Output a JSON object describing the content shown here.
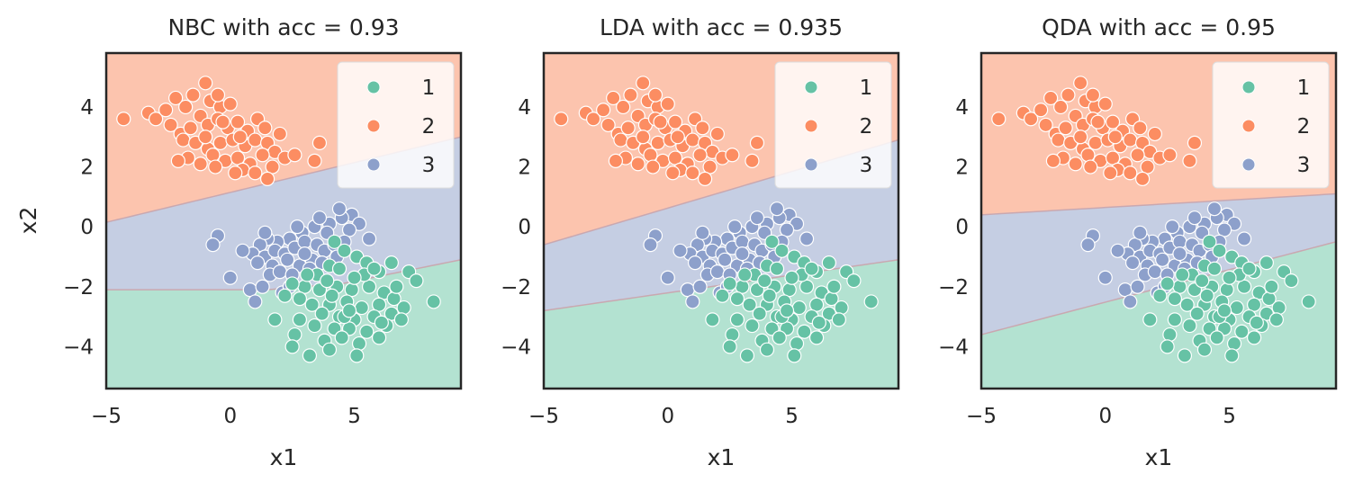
{
  "chart_data": [
    {
      "type": "scatter",
      "title": "NBC with acc = 0.93",
      "xlabel": "x1",
      "ylabel": "x2",
      "xlim": [
        -5,
        9.3
      ],
      "ylim": [
        -5.4,
        5.8
      ],
      "xticks": [
        -5,
        0,
        5
      ],
      "yticks": [
        4,
        2,
        0,
        -2,
        -4
      ],
      "grid": false,
      "legend": {
        "placement": "top-right",
        "entries": [
          "1",
          "2",
          "3"
        ]
      },
      "regions": {
        "class3_upper_boundary": [
          [
            -5,
            0.15
          ],
          [
            9.3,
            3.0
          ]
        ],
        "class1_upper_boundary": [
          [
            -5,
            -2.1
          ],
          [
            1.5,
            -2.1
          ],
          [
            4.5,
            -1.9
          ],
          [
            9.3,
            -1.1
          ]
        ]
      }
    },
    {
      "type": "scatter",
      "title": "LDA with acc = 0.935",
      "xlabel": "x1",
      "ylabel": "",
      "xlim": [
        -5,
        9.3
      ],
      "ylim": [
        -5.4,
        5.8
      ],
      "xticks": [
        -5,
        0,
        5
      ],
      "yticks": [
        4,
        2,
        0,
        -2,
        -4
      ],
      "grid": false,
      "legend": {
        "placement": "top-right",
        "entries": [
          "1",
          "2",
          "3"
        ]
      },
      "regions": {
        "class3_upper_boundary": [
          [
            -5,
            -0.6
          ],
          [
            9.3,
            2.9
          ]
        ],
        "class1_upper_boundary": [
          [
            -5,
            -2.8
          ],
          [
            9.3,
            -1.1
          ]
        ]
      }
    },
    {
      "type": "scatter",
      "title": "QDA with acc = 0.95",
      "xlabel": "x1",
      "ylabel": "",
      "xlim": [
        -5,
        9.3
      ],
      "ylim": [
        -5.4,
        5.8
      ],
      "xticks": [
        -5,
        0,
        5
      ],
      "yticks": [
        4,
        2,
        0,
        -2,
        -4
      ],
      "grid": false,
      "legend": {
        "placement": "top-right",
        "entries": [
          "1",
          "2",
          "3"
        ]
      },
      "regions": {
        "class3_upper_boundary": [
          [
            -5,
            0.4
          ],
          [
            9.3,
            1.1
          ]
        ],
        "class1_upper_boundary": [
          [
            -5,
            -3.6
          ],
          [
            9.3,
            -0.5
          ]
        ]
      }
    }
  ],
  "colors": {
    "class1": "#66c2a5",
    "class2": "#fc8d62",
    "class3": "#8da0cb",
    "region1": "#b3e2d1",
    "region2": "#fcc4ae",
    "region3": "#c5cee3"
  },
  "points": {
    "class1": [
      [
        4.2,
        -0.5
      ],
      [
        4.6,
        -0.8
      ],
      [
        5.1,
        -1.0
      ],
      [
        4.0,
        -1.3
      ],
      [
        3.5,
        -1.6
      ],
      [
        5.5,
        -1.2
      ],
      [
        6.0,
        -1.5
      ],
      [
        6.5,
        -1.2
      ],
      [
        7.2,
        -1.5
      ],
      [
        7.5,
        -1.8
      ],
      [
        3.0,
        -2.0
      ],
      [
        3.6,
        -2.1
      ],
      [
        4.3,
        -2.0
      ],
      [
        4.9,
        -2.1
      ],
      [
        5.6,
        -2.0
      ],
      [
        6.2,
        -2.2
      ],
      [
        2.8,
        -2.4
      ],
      [
        3.3,
        -2.6
      ],
      [
        4.0,
        -2.6
      ],
      [
        4.7,
        -2.5
      ],
      [
        5.3,
        -2.7
      ],
      [
        6.0,
        -2.6
      ],
      [
        6.6,
        -2.4
      ],
      [
        2.2,
        -2.3
      ],
      [
        3.7,
        -2.9
      ],
      [
        4.4,
        -3.0
      ],
      [
        5.0,
        -3.1
      ],
      [
        5.8,
        -3.0
      ],
      [
        6.5,
        -2.9
      ],
      [
        7.0,
        -2.7
      ],
      [
        8.2,
        -2.5
      ],
      [
        1.8,
        -3.1
      ],
      [
        2.8,
        -3.1
      ],
      [
        3.4,
        -3.3
      ],
      [
        4.2,
        -3.4
      ],
      [
        4.8,
        -3.4
      ],
      [
        5.5,
        -3.5
      ],
      [
        6.3,
        -3.3
      ],
      [
        6.9,
        -3.1
      ],
      [
        2.6,
        -3.6
      ],
      [
        3.8,
        -3.8
      ],
      [
        4.5,
        -3.7
      ],
      [
        5.2,
        -3.9
      ],
      [
        6.0,
        -3.7
      ],
      [
        2.5,
        -4.0
      ],
      [
        3.2,
        -4.3
      ],
      [
        4.0,
        -4.1
      ],
      [
        5.1,
        -4.3
      ],
      [
        4.6,
        -3.0
      ],
      [
        5.4,
        -1.6
      ],
      [
        3.9,
        -1.8
      ],
      [
        4.1,
        -2.3
      ],
      [
        5.8,
        -1.4
      ],
      [
        6.7,
        -2.0
      ],
      [
        2.5,
        -1.9
      ],
      [
        3.1,
        -1.6
      ],
      [
        4.4,
        -1.4
      ],
      [
        5.0,
        -1.7
      ],
      [
        6.1,
        -3.2
      ],
      [
        4.8,
        -2.8
      ]
    ],
    "class2": [
      [
        -4.3,
        3.6
      ],
      [
        -3.3,
        3.8
      ],
      [
        -3.0,
        3.6
      ],
      [
        -2.6,
        3.9
      ],
      [
        -2.2,
        4.3
      ],
      [
        -1.8,
        4.0
      ],
      [
        -1.5,
        4.4
      ],
      [
        -1.0,
        4.8
      ],
      [
        -0.8,
        4.2
      ],
      [
        -0.4,
        4.0
      ],
      [
        0.0,
        4.1
      ],
      [
        -2.4,
        3.4
      ],
      [
        -2.0,
        3.1
      ],
      [
        -1.6,
        3.3
      ],
      [
        -1.2,
        3.7
      ],
      [
        -0.9,
        3.4
      ],
      [
        -0.5,
        3.6
      ],
      [
        -0.1,
        3.3
      ],
      [
        0.3,
        3.5
      ],
      [
        0.7,
        3.2
      ],
      [
        1.1,
        3.6
      ],
      [
        1.4,
        3.3
      ],
      [
        -1.9,
        2.9
      ],
      [
        -1.4,
        2.8
      ],
      [
        -0.9,
        2.6
      ],
      [
        -0.4,
        2.8
      ],
      [
        0.1,
        2.9
      ],
      [
        0.6,
        2.7
      ],
      [
        1.0,
        2.9
      ],
      [
        1.5,
        2.8
      ],
      [
        1.8,
        2.5
      ],
      [
        -1.7,
        2.3
      ],
      [
        -1.2,
        2.1
      ],
      [
        -0.7,
        2.4
      ],
      [
        -0.2,
        2.2
      ],
      [
        0.3,
        2.3
      ],
      [
        0.8,
        2.1
      ],
      [
        1.3,
        2.4
      ],
      [
        1.7,
        2.0
      ],
      [
        2.2,
        2.3
      ],
      [
        2.6,
        2.4
      ],
      [
        3.4,
        2.2
      ],
      [
        3.6,
        2.8
      ],
      [
        0.5,
        1.9
      ],
      [
        1.0,
        1.8
      ],
      [
        1.5,
        1.6
      ],
      [
        -0.6,
        2.0
      ],
      [
        0.2,
        1.8
      ],
      [
        -1.0,
        3.0
      ],
      [
        0.4,
        3.0
      ],
      [
        -0.3,
        3.5
      ],
      [
        2.0,
        3.1
      ],
      [
        -2.1,
        2.2
      ],
      [
        -0.5,
        4.4
      ]
    ],
    "class3": [
      [
        4.9,
        0.4
      ],
      [
        5.2,
        0.1
      ],
      [
        4.5,
        0.3
      ],
      [
        4.8,
        -0.1
      ],
      [
        4.0,
        0.1
      ],
      [
        3.4,
        0.0
      ],
      [
        2.9,
        -0.2
      ],
      [
        2.4,
        -0.4
      ],
      [
        1.9,
        -0.5
      ],
      [
        1.5,
        -0.4
      ],
      [
        1.2,
        -0.6
      ],
      [
        -0.5,
        -0.3
      ],
      [
        -0.7,
        -0.6
      ],
      [
        0.9,
        -0.9
      ],
      [
        1.4,
        -1.0
      ],
      [
        1.8,
        -0.8
      ],
      [
        2.2,
        -0.9
      ],
      [
        2.6,
        -0.7
      ],
      [
        3.0,
        -0.5
      ],
      [
        3.5,
        -0.6
      ],
      [
        3.8,
        -0.8
      ],
      [
        4.2,
        -0.6
      ],
      [
        4.6,
        -0.5
      ],
      [
        5.6,
        -0.4
      ],
      [
        1.1,
        -1.2
      ],
      [
        1.7,
        -1.3
      ],
      [
        2.3,
        -1.1
      ],
      [
        2.8,
        -1.3
      ],
      [
        3.3,
        -1.1
      ],
      [
        3.7,
        -1.2
      ],
      [
        4.3,
        -1.0
      ],
      [
        0.0,
        -1.7
      ],
      [
        0.8,
        -2.1
      ],
      [
        1.3,
        -2.0
      ],
      [
        1.6,
        -1.6
      ],
      [
        2.0,
        -1.5
      ],
      [
        2.5,
        -1.6
      ],
      [
        1.0,
        -2.5
      ],
      [
        2.1,
        -2.2
      ],
      [
        3.0,
        -0.9
      ],
      [
        3.9,
        -0.2
      ],
      [
        4.4,
        0.6
      ],
      [
        2.7,
        0.0
      ],
      [
        3.2,
        -1.4
      ],
      [
        2.4,
        -2.0
      ],
      [
        1.4,
        -0.2
      ],
      [
        3.6,
        0.3
      ],
      [
        0.5,
        -0.8
      ]
    ]
  }
}
